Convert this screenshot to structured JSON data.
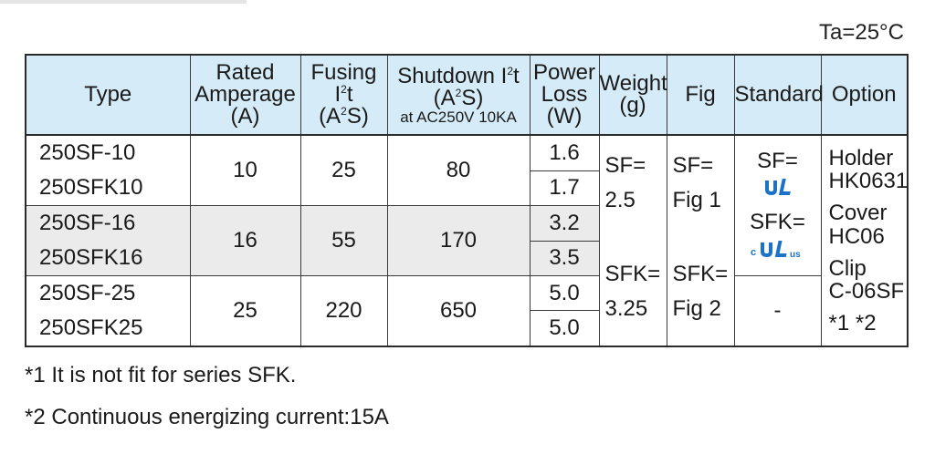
{
  "ambient": "Ta=25°C",
  "headers": {
    "type": "Type",
    "rated_1": "Rated",
    "rated_2": "Amperage",
    "rated_3": "(A)",
    "fusing_1": "Fusing I",
    "fusing_sup": "2",
    "fusing_2": "t",
    "fusing_unit_a": "(A",
    "fusing_unit_sup": "2",
    "fusing_unit_b": "S)",
    "shutdown_1": "Shutdown I",
    "shutdown_sup": "2",
    "shutdown_2": "t",
    "shutdown_unit_a": "(A",
    "shutdown_unit_sup": "2",
    "shutdown_unit_b": "S)",
    "shutdown_3": "at AC250V 10KA",
    "power_1": "Power",
    "power_2": "Loss",
    "power_3": "(W)",
    "weight_1": "Weight",
    "weight_2": "(g)",
    "fig": "Fig",
    "standard": "Standard",
    "option": "Option"
  },
  "rows": [
    {
      "types": [
        "250SF-10",
        "250SFK10"
      ],
      "rated": "10",
      "fusing": "25",
      "shutdown": "80",
      "loss": [
        "1.6",
        "1.7"
      ]
    },
    {
      "types": [
        "250SF-16",
        "250SFK16"
      ],
      "rated": "16",
      "fusing": "55",
      "shutdown": "170",
      "loss": [
        "3.2",
        "3.5"
      ]
    },
    {
      "types": [
        "250SF-25",
        "250SFK25"
      ],
      "rated": "25",
      "fusing": "220",
      "shutdown": "650",
      "loss": [
        "5.0",
        "5.0"
      ]
    }
  ],
  "weight": {
    "sf_label": "SF=",
    "sf_value": "2.5",
    "sfk_label": "SFK=",
    "sfk_value": "3.25"
  },
  "fig": {
    "sf_label": "SF=",
    "sf_value": "Fig 1",
    "sfk_label": "SFK=",
    "sfk_value": "Fig 2"
  },
  "standard": {
    "sf_label": "SF=",
    "sfk_label": "SFK=",
    "ul_mark": "UL recognized component mark",
    "cul_mark": "cURus mark",
    "cul_c": "c",
    "cul_us": "us",
    "none": "-"
  },
  "option": {
    "holder_label": "Holder",
    "holder_value": "HK0631",
    "cover_label": "Cover",
    "cover_value": "HC06",
    "clip_label": "Clip",
    "clip_value": "C-06SF",
    "clip_notes": "*1 *2"
  },
  "notes": [
    "*1 It is not fit for series SFK.",
    "*2 Continuous energizing current:15A"
  ],
  "colors": {
    "header_bg": "#d5ecf8",
    "stripe": "#ebebeb",
    "ul_blue": "#1a73c8"
  }
}
